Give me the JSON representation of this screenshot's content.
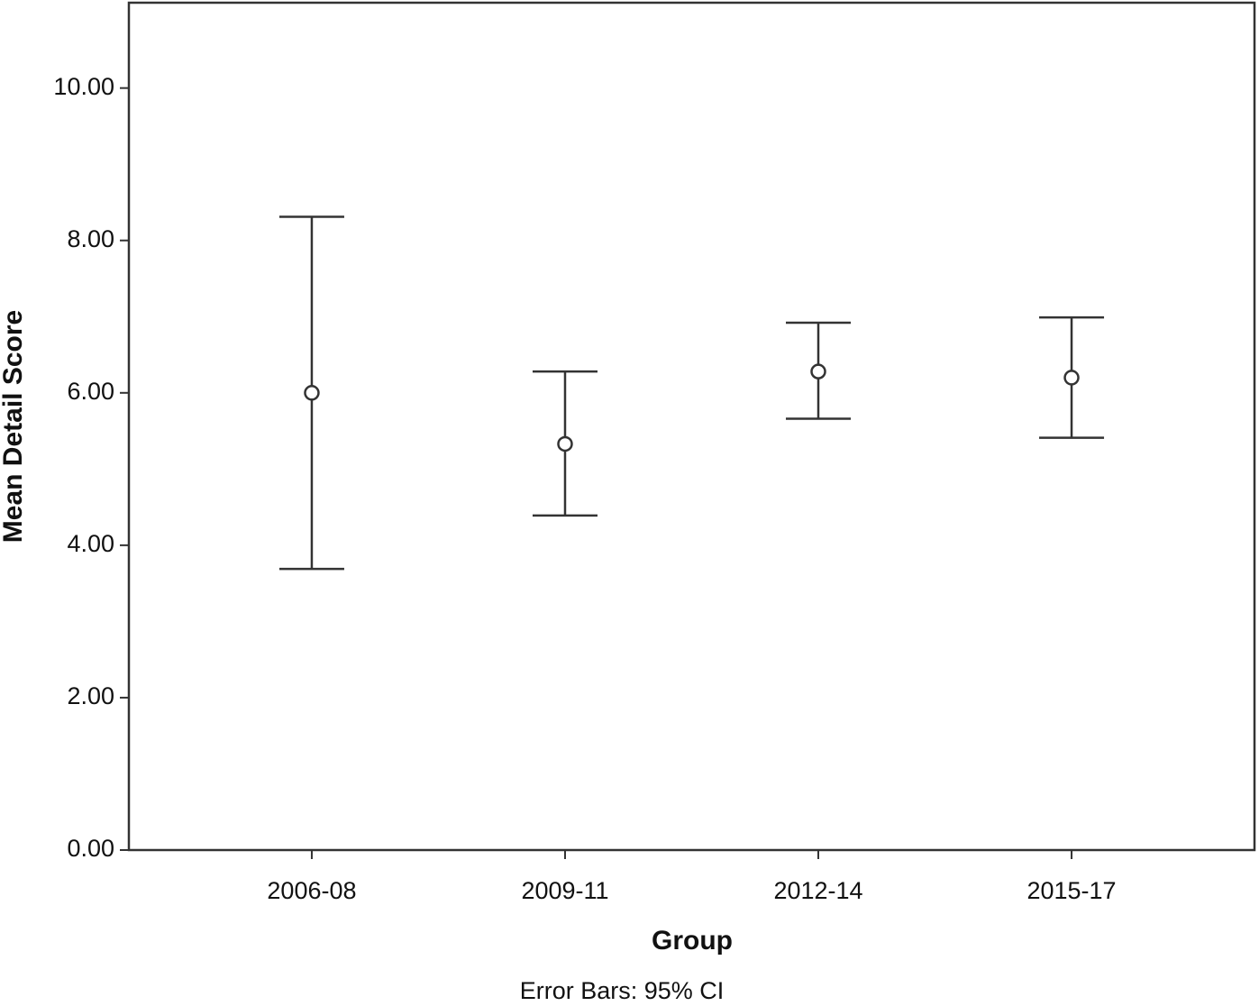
{
  "chart_data": {
    "type": "errorbar",
    "x_label": "Group",
    "y_label": "Mean Detail Score",
    "annotation": "Error Bars: 95% CI",
    "categories": [
      "2006-08",
      "2009-11",
      "2012-14",
      "2015-17"
    ],
    "values": [
      6.0,
      5.33,
      6.28,
      6.2
    ],
    "ci_lower": [
      3.69,
      4.39,
      5.66,
      5.41
    ],
    "ci_upper": [
      8.31,
      6.28,
      6.92,
      6.99
    ],
    "color": "#333333",
    "ylim": [
      0,
      11.12
    ],
    "yticks": [
      {
        "value": 0,
        "label": "0.00"
      },
      {
        "value": 2,
        "label": "2.00"
      },
      {
        "value": 4,
        "label": "4.00"
      },
      {
        "value": 6,
        "label": "6.00"
      },
      {
        "value": 8,
        "label": "8.00"
      },
      {
        "value": 10,
        "label": "10.00"
      }
    ],
    "grid": false
  }
}
